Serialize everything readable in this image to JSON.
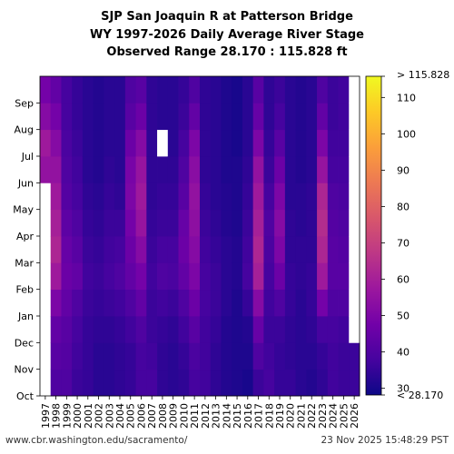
{
  "title_lines": [
    "SJP San Joaquin R at Patterson Bridge",
    "WY 1997-2026 Daily Average River Stage",
    "Observed Range 28.170 : 115.828 ft"
  ],
  "footer": {
    "source": "www.cbr.washington.edu/sacramento/",
    "timestamp": "23 Nov 2025 15:48:29 PST"
  },
  "chart_data": {
    "type": "heatmap",
    "title": "SJP San Joaquin R at Patterson Bridge",
    "subtitle": "WY 1997-2026 Daily Average River Stage",
    "range_text": "Observed Range 28.170 : 115.828 ft",
    "x_categories": [
      "1997",
      "1998",
      "1999",
      "2000",
      "2001",
      "2002",
      "2003",
      "2004",
      "2005",
      "2006",
      "2007",
      "2008",
      "2009",
      "2010",
      "2011",
      "2012",
      "2013",
      "2014",
      "2015",
      "2016",
      "2017",
      "2018",
      "2019",
      "2020",
      "2021",
      "2022",
      "2023",
      "2024",
      "2025",
      "2026"
    ],
    "y_months": [
      "Oct",
      "Nov",
      "Dec",
      "Jan",
      "Feb",
      "Mar",
      "Apr",
      "May",
      "Jun",
      "Jul",
      "Aug",
      "Sep"
    ],
    "colorbar": {
      "min": 28.17,
      "max": 115.828,
      "ticks": [
        30,
        40,
        50,
        60,
        70,
        80,
        90,
        100,
        110
      ],
      "top_label": "> 115.828",
      "bottom_label": "< 28.170",
      "colormap": [
        "#0d0887",
        "#46039f",
        "#7201a8",
        "#9c179e",
        "#bd3786",
        "#d8576b",
        "#ed7953",
        "#fb9f3a",
        "#fdca26",
        "#f0f921"
      ]
    },
    "monthly_stage_ft": {
      "1997": [
        null,
        null,
        null,
        null,
        null,
        null,
        null,
        null,
        55,
        58,
        52,
        48
      ],
      "1998": [
        40,
        42,
        44,
        50,
        58,
        62,
        60,
        58,
        55,
        52,
        48,
        44
      ],
      "1999": [
        40,
        41,
        42,
        44,
        46,
        45,
        43,
        41,
        40,
        39,
        38,
        38
      ],
      "2000": [
        36,
        37,
        38,
        40,
        44,
        42,
        40,
        38,
        37,
        36,
        35,
        35
      ],
      "2001": [
        35,
        35,
        35,
        36,
        37,
        36,
        35,
        34,
        33,
        33,
        33,
        33
      ],
      "2002": [
        33,
        33,
        34,
        35,
        36,
        35,
        34,
        33,
        32,
        32,
        32,
        32
      ],
      "2003": [
        33,
        33,
        34,
        36,
        38,
        37,
        36,
        35,
        34,
        33,
        33,
        33
      ],
      "2004": [
        34,
        34,
        35,
        37,
        40,
        38,
        36,
        34,
        33,
        33,
        33,
        33
      ],
      "2005": [
        35,
        35,
        37,
        40,
        44,
        46,
        48,
        50,
        49,
        46,
        42,
        40
      ],
      "2006": [
        38,
        38,
        40,
        44,
        48,
        52,
        56,
        58,
        56,
        52,
        46,
        42
      ],
      "2007": [
        38,
        37,
        36,
        36,
        37,
        36,
        35,
        34,
        34,
        34,
        34,
        34
      ],
      "2008": [
        34,
        34,
        35,
        37,
        40,
        38,
        36,
        35,
        34,
        null,
        33,
        33
      ],
      "2009": [
        33,
        33,
        34,
        36,
        39,
        38,
        36,
        35,
        34,
        33,
        33,
        33
      ],
      "2010": [
        34,
        35,
        37,
        40,
        44,
        46,
        45,
        42,
        40,
        38,
        36,
        35
      ],
      "2011": [
        38,
        39,
        42,
        46,
        50,
        52,
        54,
        55,
        53,
        50,
        44,
        40
      ],
      "2012": [
        37,
        37,
        37,
        38,
        38,
        37,
        36,
        35,
        34,
        34,
        34,
        34
      ],
      "2013": [
        34,
        34,
        35,
        36,
        36,
        35,
        34,
        33,
        33,
        33,
        33,
        33
      ],
      "2014": [
        32,
        32,
        32,
        33,
        33,
        33,
        32,
        32,
        31,
        31,
        31,
        31
      ],
      "2015": [
        31,
        31,
        31,
        31,
        32,
        32,
        31,
        31,
        31,
        30,
        30,
        30
      ],
      "2016": [
        30,
        31,
        32,
        35,
        38,
        37,
        36,
        35,
        34,
        33,
        33,
        33
      ],
      "2017": [
        36,
        40,
        45,
        52,
        60,
        62,
        60,
        58,
        55,
        50,
        45,
        42
      ],
      "2018": [
        38,
        37,
        36,
        37,
        38,
        39,
        40,
        38,
        36,
        35,
        34,
        34
      ],
      "2019": [
        35,
        35,
        36,
        40,
        46,
        50,
        52,
        50,
        46,
        42,
        38,
        36
      ],
      "2020": [
        35,
        34,
        34,
        35,
        35,
        34,
        34,
        33,
        33,
        33,
        33,
        33
      ],
      "2021": [
        33,
        33,
        33,
        33,
        34,
        34,
        33,
        33,
        32,
        32,
        32,
        32
      ],
      "2022": [
        32,
        33,
        34,
        35,
        35,
        34,
        34,
        34,
        33,
        33,
        33,
        33
      ],
      "2023": [
        34,
        35,
        38,
        48,
        58,
        62,
        64,
        62,
        56,
        50,
        44,
        40
      ],
      "2024": [
        37,
        37,
        38,
        40,
        42,
        42,
        41,
        40,
        38,
        37,
        36,
        36
      ],
      "2025": [
        36,
        36,
        37,
        40,
        42,
        41,
        40,
        39,
        38,
        37,
        37,
        37
      ],
      "2026": [
        36,
        36,
        null,
        null,
        null,
        null,
        null,
        null,
        null,
        null,
        null,
        null
      ]
    }
  }
}
